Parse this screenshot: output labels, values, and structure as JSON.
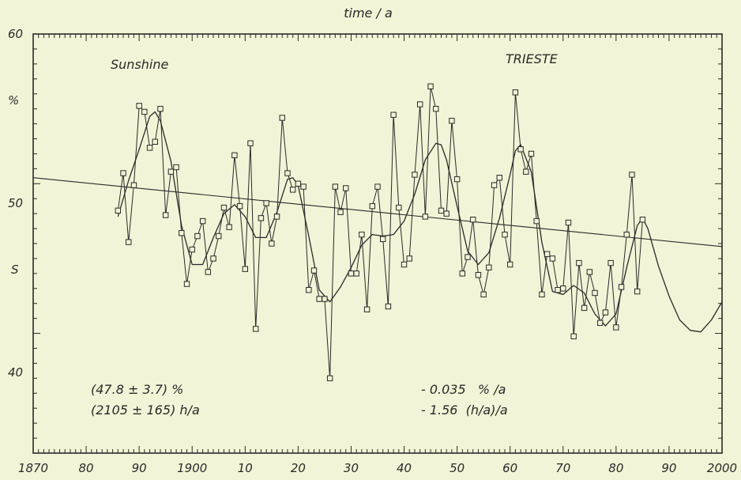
{
  "chart_data": {
    "type": "line",
    "title": "",
    "top_axis_label": "time / a",
    "y_unit_label": "%",
    "y_mid_label": "S",
    "xlim": [
      1870,
      2000
    ],
    "ylim": [
      32,
      60
    ],
    "x_ticks": [
      1870,
      1880,
      1890,
      1900,
      1910,
      1920,
      1930,
      1940,
      1950,
      1960,
      1970,
      1980,
      1990,
      2000
    ],
    "x_tick_labels": [
      "1870",
      "80",
      "90",
      "1900",
      "10",
      "20",
      "30",
      "40",
      "50",
      "60",
      "70",
      "80",
      "90",
      "2000"
    ],
    "y_ticks": [
      40,
      50,
      60
    ],
    "y_tick_labels": [
      "40",
      "50",
      "60"
    ],
    "annotations": {
      "variable": "Sunshine",
      "station": "TRIESTE",
      "mean_percent": "(47.8 ± 3.7) %",
      "mean_hours": "(2105 ± 165) h/a",
      "trend_percent": "- 0.035   % /a",
      "trend_hours": "- 1.56  (h/a)/a"
    },
    "series": [
      {
        "kind": "observed",
        "marker": "square",
        "x": [
          1886,
          1887,
          1888,
          1889,
          1890,
          1891,
          1892,
          1893,
          1894,
          1895,
          1896,
          1897,
          1898,
          1899,
          1900,
          1901,
          1902,
          1903,
          1904,
          1905,
          1906,
          1907,
          1908,
          1909,
          1910,
          1911,
          1912,
          1913,
          1914,
          1915,
          1916,
          1917,
          1918,
          1919,
          1920,
          1921,
          1922,
          1923,
          1924,
          1925,
          1926,
          1927,
          1928,
          1929,
          1930,
          1931,
          1932,
          1933,
          1934,
          1935,
          1936,
          1937,
          1938,
          1939,
          1940,
          1941,
          1942,
          1943,
          1944,
          1945,
          1946,
          1947,
          1948,
          1949,
          1950,
          1951,
          1952,
          1953,
          1954,
          1955,
          1956,
          1957,
          1958,
          1959,
          1960,
          1961,
          1962,
          1963,
          1964,
          1965,
          1966,
          1967,
          1968,
          1969,
          1970,
          1971,
          1972,
          1973,
          1974,
          1975,
          1976,
          1977,
          1978,
          1979,
          1980,
          1981,
          1982,
          1983,
          1984,
          1985
        ],
        "y": [
          48.2,
          50.7,
          46.1,
          49.9,
          55.2,
          54.8,
          52.4,
          52.8,
          55.0,
          47.9,
          50.8,
          51.1,
          46.7,
          43.3,
          45.6,
          46.5,
          47.5,
          44.1,
          45.0,
          46.5,
          48.4,
          47.1,
          51.9,
          48.5,
          44.3,
          52.7,
          40.3,
          47.7,
          48.7,
          46.0,
          47.8,
          54.4,
          50.7,
          49.6,
          50.0,
          49.8,
          42.9,
          44.2,
          42.3,
          42.3,
          37.0,
          49.8,
          48.1,
          49.7,
          44.0,
          44.0,
          46.6,
          41.6,
          48.5,
          49.8,
          46.3,
          41.8,
          54.6,
          48.4,
          44.6,
          45.0,
          50.6,
          55.3,
          47.8,
          56.5,
          55.0,
          48.2,
          48.0,
          54.2,
          50.3,
          44.0,
          45.1,
          47.6,
          43.9,
          42.6,
          44.4,
          49.9,
          50.4,
          46.6,
          44.6,
          56.1,
          52.3,
          50.8,
          52.0,
          47.5,
          42.6,
          45.3,
          45.0,
          42.9,
          43.0,
          47.4,
          39.8,
          44.7,
          41.7,
          44.1,
          42.7,
          40.7,
          41.4,
          44.7,
          40.4,
          43.1,
          46.6,
          50.6,
          42.8,
          47.6
        ]
      },
      {
        "kind": "smoothed",
        "x": [
          1886,
          1888,
          1890,
          1892,
          1893,
          1894,
          1896,
          1898,
          1900,
          1902,
          1904,
          1906,
          1908,
          1910,
          1912,
          1914,
          1916,
          1918,
          1919,
          1920,
          1922,
          1924,
          1926,
          1928,
          1930,
          1932,
          1934,
          1936,
          1938,
          1940,
          1942,
          1944,
          1946,
          1947,
          1948,
          1950,
          1952,
          1954,
          1956,
          1958,
          1960,
          1961,
          1962,
          1964,
          1966,
          1968,
          1970,
          1972,
          1974,
          1976,
          1978,
          1980,
          1982,
          1984,
          1985,
          1986,
          1988,
          1990,
          1992,
          1994,
          1996,
          1998,
          2000
        ],
        "y": [
          47.8,
          50.2,
          52.3,
          54.5,
          54.8,
          54.2,
          51.5,
          47.2,
          44.6,
          44.6,
          46.4,
          48.0,
          48.6,
          47.8,
          46.4,
          46.4,
          48.1,
          50.3,
          50.4,
          49.9,
          46.5,
          42.9,
          42.1,
          43.1,
          44.4,
          45.9,
          46.6,
          46.5,
          46.6,
          47.5,
          49.3,
          51.6,
          52.7,
          52.6,
          51.6,
          48.5,
          45.5,
          44.6,
          45.4,
          47.7,
          50.6,
          52.2,
          52.6,
          50.8,
          46.1,
          42.8,
          42.6,
          43.2,
          42.7,
          41.3,
          40.5,
          41.3,
          44.4,
          47.2,
          47.7,
          47.0,
          44.5,
          42.5,
          40.9,
          40.2,
          40.1,
          40.9,
          42.1
        ]
      },
      {
        "kind": "linear_trend",
        "x": [
          1870,
          2000
        ],
        "y": [
          50.4,
          45.8
        ]
      }
    ]
  }
}
